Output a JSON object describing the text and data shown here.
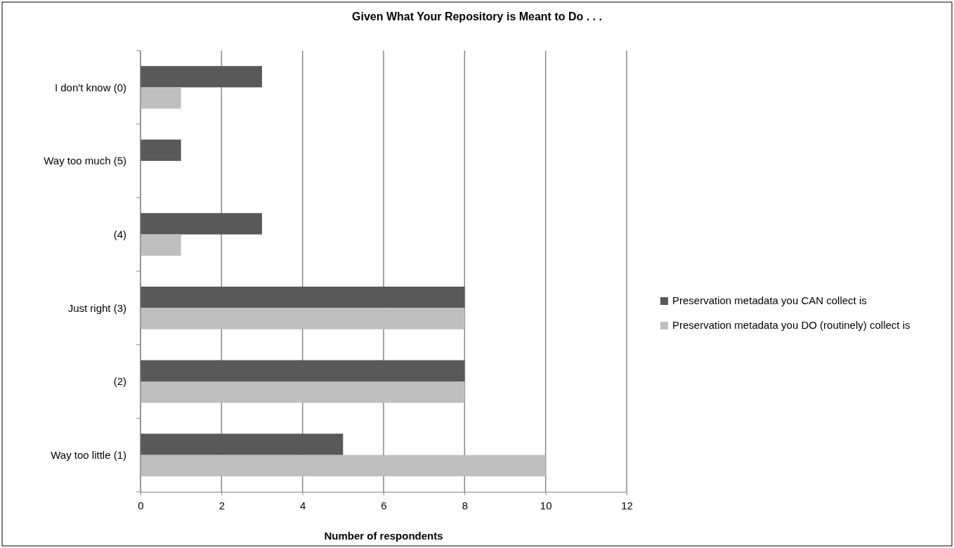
{
  "chart_data": {
    "type": "bar",
    "orientation": "horizontal",
    "title": "Given What Your Repository is Meant to Do . . .",
    "xlabel": "Number of respondents",
    "categories": [
      "I don't know (0)",
      "Way too much (5)",
      "(4)",
      "Just right (3)",
      "(2)",
      "Way too little (1)"
    ],
    "series": [
      {
        "name": "Preservation metadata you CAN collect is",
        "color": "#595959",
        "values": [
          3,
          1,
          3,
          8,
          8,
          5
        ]
      },
      {
        "name": "Preservation metadata you DO (routinely) collect is",
        "color": "#bfbfbf",
        "values": [
          1,
          0,
          1,
          8,
          8,
          10
        ]
      }
    ],
    "xlim": [
      0,
      12
    ],
    "xticks": [
      0,
      2,
      4,
      6,
      8,
      10,
      12
    ],
    "grid": "x",
    "legend": "right"
  }
}
